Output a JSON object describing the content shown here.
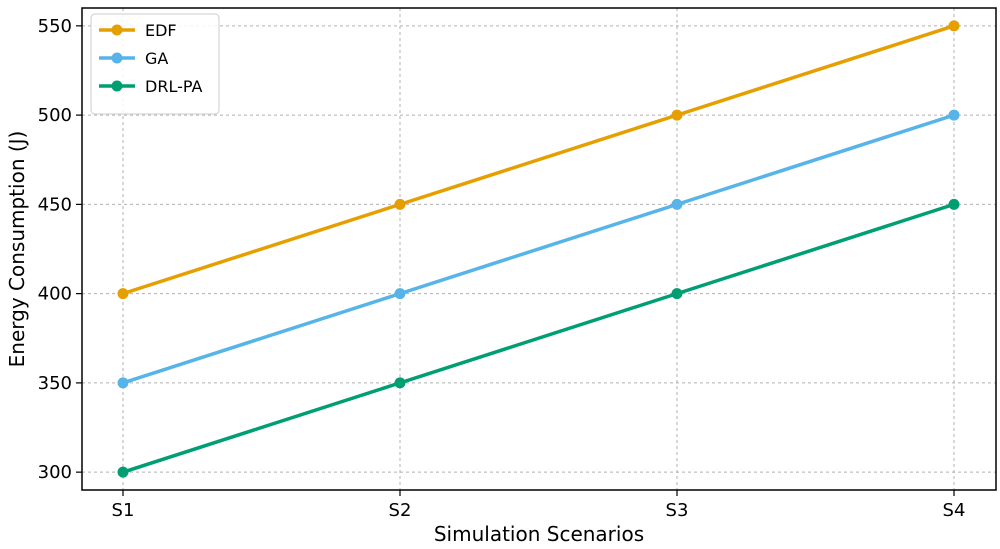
{
  "chart_data": {
    "type": "line",
    "title": "",
    "xlabel": "Simulation Scenarios",
    "ylabel": "Energy Consumption (J)",
    "categories": [
      "S1",
      "S2",
      "S3",
      "S4"
    ],
    "ylim": [
      290,
      560
    ],
    "yticks": [
      300,
      350,
      400,
      450,
      500,
      550
    ],
    "grid": true,
    "legend_position": "top-left",
    "series": [
      {
        "name": "EDF",
        "color": "#E69F00",
        "values": [
          400,
          450,
          500,
          550
        ]
      },
      {
        "name": "GA",
        "color": "#56B4E9",
        "values": [
          350,
          400,
          450,
          500
        ]
      },
      {
        "name": "DRL-PA",
        "color": "#009E73",
        "values": [
          300,
          350,
          400,
          450
        ]
      }
    ]
  }
}
